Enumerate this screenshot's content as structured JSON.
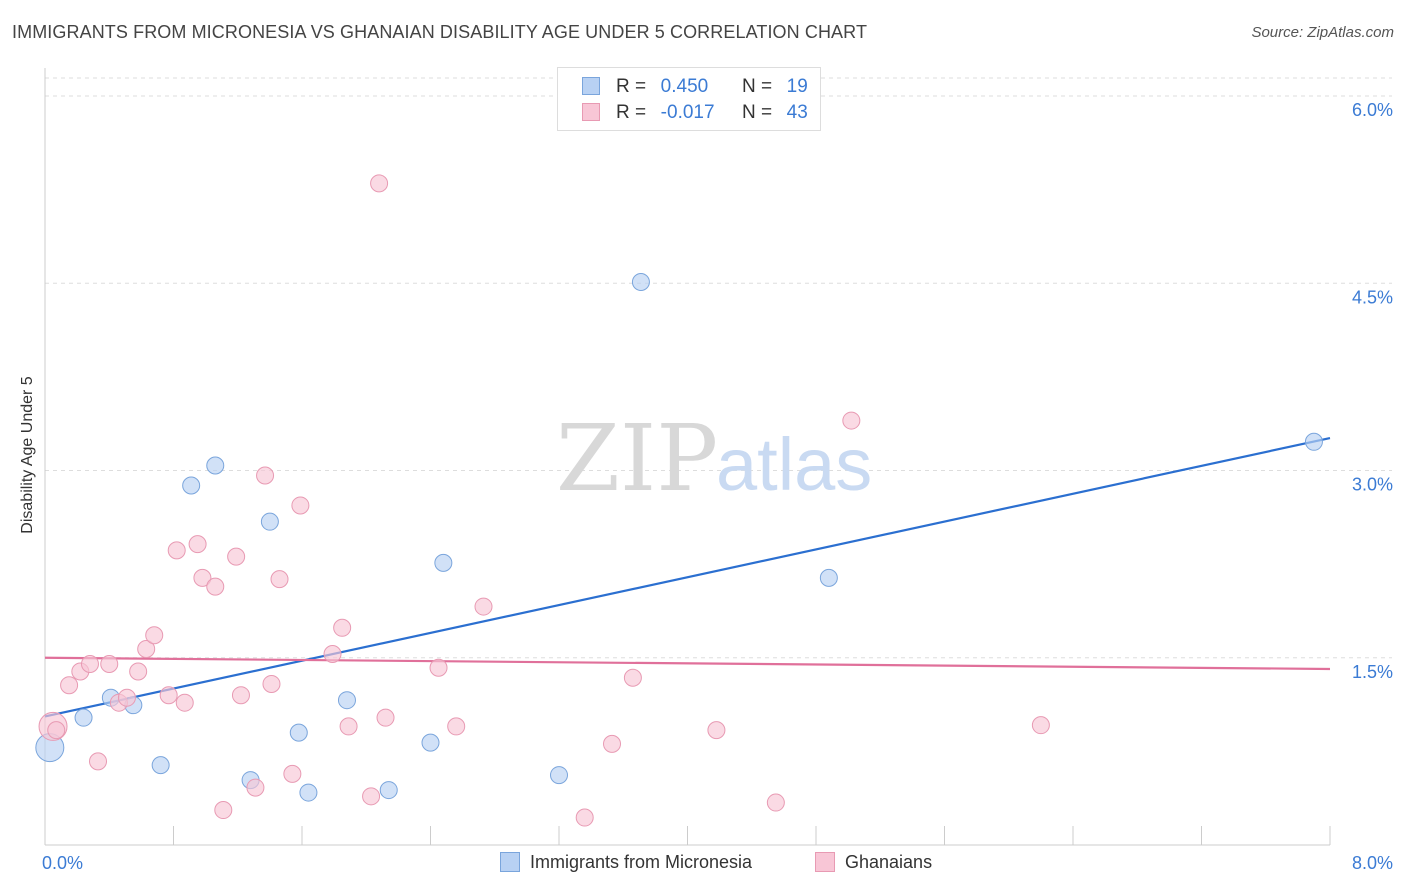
{
  "title": "IMMIGRANTS FROM MICRONESIA VS GHANAIAN DISABILITY AGE UNDER 5 CORRELATION CHART",
  "source": "Source: ZipAtlas.com",
  "watermark": {
    "zip": "ZIP",
    "atlas": "atlas"
  },
  "legend_stats": [
    {
      "r_label": "R =",
      "r_value": "0.450",
      "n_label": "N =",
      "n_value": "19"
    },
    {
      "r_label": "R =",
      "r_value": "-0.017",
      "n_label": "N =",
      "n_value": "43"
    }
  ],
  "colors": {
    "blue_fill": "#b8d1f3",
    "blue_stroke": "#7aa5dc",
    "blue_line": "#2b6fd0",
    "pink_fill": "#f8c6d6",
    "pink_stroke": "#e89ab3",
    "pink_line": "#e0709a",
    "tick_label": "#3b7bd4",
    "grid": "#dddddd"
  },
  "chart_data": {
    "type": "scatter",
    "xlabel": "",
    "ylabel": "Disability Age Under 5",
    "xlim": [
      0,
      8
    ],
    "ylim": [
      0,
      6
    ],
    "x_tick_labels": [
      "0.0%",
      "8.0%"
    ],
    "y_ticks": [
      1.5,
      3.0,
      4.5,
      6.0
    ],
    "y_tick_labels": [
      "1.5%",
      "3.0%",
      "4.5%",
      "6.0%"
    ],
    "grid": "horizontal dashed",
    "legend_placement": "bottom",
    "series": [
      {
        "name": "Immigrants from Micronesia",
        "color": "blue",
        "r": 0.45,
        "n": 19,
        "points": [
          {
            "x": 0.03,
            "y": 0.78,
            "big": true
          },
          {
            "x": 0.24,
            "y": 1.02
          },
          {
            "x": 0.41,
            "y": 1.18
          },
          {
            "x": 0.55,
            "y": 1.12
          },
          {
            "x": 0.72,
            "y": 0.64
          },
          {
            "x": 0.91,
            "y": 2.88
          },
          {
            "x": 1.06,
            "y": 3.04
          },
          {
            "x": 1.28,
            "y": 0.52
          },
          {
            "x": 1.4,
            "y": 2.59
          },
          {
            "x": 1.58,
            "y": 0.9
          },
          {
            "x": 1.64,
            "y": 0.42
          },
          {
            "x": 1.88,
            "y": 1.16
          },
          {
            "x": 2.14,
            "y": 0.44
          },
          {
            "x": 2.4,
            "y": 0.82
          },
          {
            "x": 2.48,
            "y": 2.26
          },
          {
            "x": 3.2,
            "y": 0.56
          },
          {
            "x": 3.71,
            "y": 4.51
          },
          {
            "x": 4.88,
            "y": 2.14
          },
          {
            "x": 7.9,
            "y": 3.23
          }
        ],
        "trend": {
          "x0": 0.0,
          "y0": 1.03,
          "x1": 8.0,
          "y1": 3.26
        }
      },
      {
        "name": "Ghanaians",
        "color": "pink",
        "r": -0.017,
        "n": 43,
        "points": [
          {
            "x": 0.05,
            "y": 0.95,
            "big": true
          },
          {
            "x": 0.15,
            "y": 1.28
          },
          {
            "x": 0.22,
            "y": 1.39
          },
          {
            "x": 0.28,
            "y": 1.45
          },
          {
            "x": 0.33,
            "y": 0.67
          },
          {
            "x": 0.4,
            "y": 1.45
          },
          {
            "x": 0.46,
            "y": 1.14
          },
          {
            "x": 0.51,
            "y": 1.18
          },
          {
            "x": 0.58,
            "y": 1.39
          },
          {
            "x": 0.63,
            "y": 1.57
          },
          {
            "x": 0.68,
            "y": 1.68
          },
          {
            "x": 0.77,
            "y": 1.2
          },
          {
            "x": 0.82,
            "y": 2.36
          },
          {
            "x": 0.87,
            "y": 1.14
          },
          {
            "x": 0.95,
            "y": 2.41
          },
          {
            "x": 0.98,
            "y": 2.14
          },
          {
            "x": 1.06,
            "y": 2.07
          },
          {
            "x": 1.11,
            "y": 0.28
          },
          {
            "x": 1.19,
            "y": 2.31
          },
          {
            "x": 1.22,
            "y": 1.2
          },
          {
            "x": 1.31,
            "y": 0.46
          },
          {
            "x": 1.37,
            "y": 2.96
          },
          {
            "x": 1.41,
            "y": 1.29
          },
          {
            "x": 1.46,
            "y": 2.13
          },
          {
            "x": 1.54,
            "y": 0.57
          },
          {
            "x": 1.59,
            "y": 2.72
          },
          {
            "x": 1.79,
            "y": 1.53
          },
          {
            "x": 1.85,
            "y": 1.74
          },
          {
            "x": 1.89,
            "y": 0.95
          },
          {
            "x": 2.03,
            "y": 0.39
          },
          {
            "x": 2.08,
            "y": 5.3
          },
          {
            "x": 2.12,
            "y": 1.02
          },
          {
            "x": 2.45,
            "y": 1.42
          },
          {
            "x": 2.56,
            "y": 0.95
          },
          {
            "x": 2.73,
            "y": 1.91
          },
          {
            "x": 3.36,
            "y": 0.22
          },
          {
            "x": 3.53,
            "y": 0.81
          },
          {
            "x": 3.66,
            "y": 1.34
          },
          {
            "x": 4.18,
            "y": 0.92
          },
          {
            "x": 4.55,
            "y": 0.34
          },
          {
            "x": 5.02,
            "y": 3.4
          },
          {
            "x": 6.2,
            "y": 0.96
          },
          {
            "x": 0.07,
            "y": 0.92
          }
        ],
        "trend": {
          "x0": 0.0,
          "y0": 1.5,
          "x1": 8.0,
          "y1": 1.41
        }
      }
    ]
  }
}
